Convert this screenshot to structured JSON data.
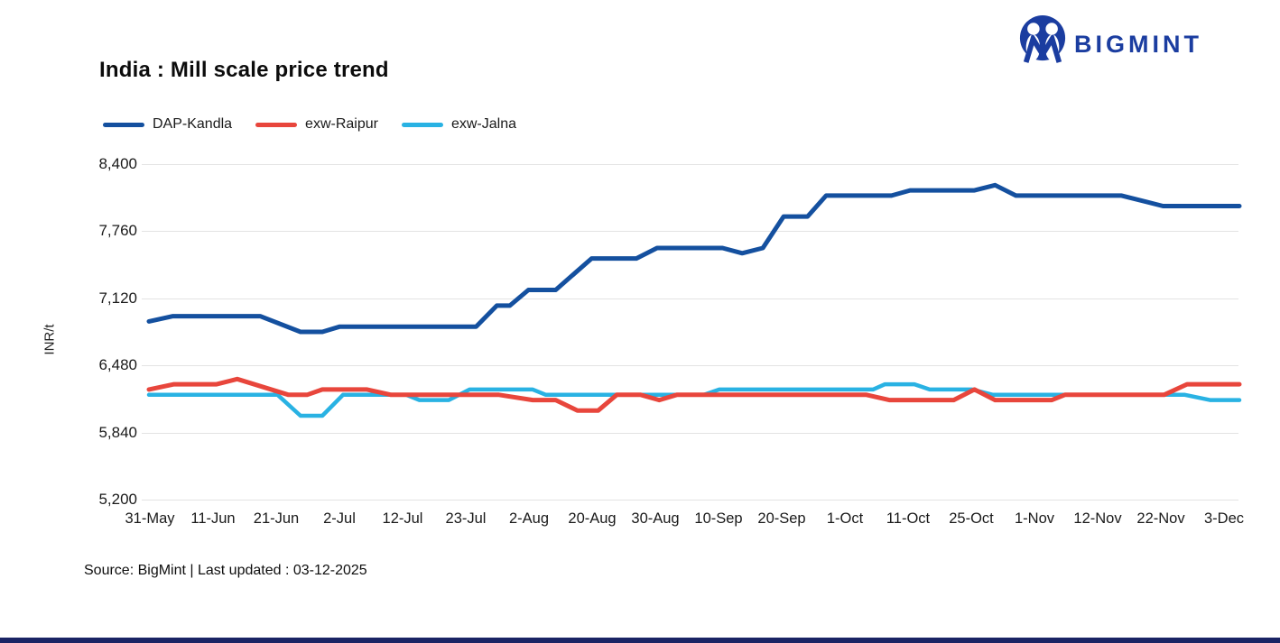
{
  "header": {
    "brand_text": "BIGMINT"
  },
  "title": "India : Mill scale price trend",
  "source_line": "Source: BigMint | Last updated : 03-12-2025",
  "colors": {
    "kandla_blue": "#14509F",
    "raipur_red": "#E8463C",
    "jalna_cyan": "#29B2E3",
    "logo_blue": "#1B3DA0",
    "grid": "#E3E3E3",
    "footer_bar": "#1A2464",
    "text": "#1a1a1a"
  },
  "chart_data": {
    "type": "line",
    "title": "India : Mill scale price trend",
    "xlabel": "",
    "ylabel": "INR/t",
    "ylim": [
      5200,
      8400
    ],
    "grid": "horizontal",
    "legend_position": "top-left",
    "yticks": [
      {
        "value": 8400,
        "label": "8,400"
      },
      {
        "value": 7760,
        "label": "7,760"
      },
      {
        "value": 7120,
        "label": "7,120"
      },
      {
        "value": 6480,
        "label": "6,480"
      },
      {
        "value": 5840,
        "label": "5,840"
      },
      {
        "value": 5200,
        "label": "5,200"
      }
    ],
    "xticks": [
      "31-May",
      "11-Jun",
      "21-Jun",
      "2-Jul",
      "12-Jul",
      "23-Jul",
      "2-Aug",
      "20-Aug",
      "30-Aug",
      "10-Sep",
      "20-Sep",
      "1-Oct",
      "11-Oct",
      "25-Oct",
      "1-Nov",
      "12-Nov",
      "22-Nov",
      "3-Dec"
    ],
    "x_unit": "fraction of timeline, 0 = 31-May, 1 = 3-Dec",
    "series": [
      {
        "name": "DAP-Kandla",
        "color": "#14509F",
        "stroke_width": 5,
        "points": [
          [
            0,
            6900
          ],
          [
            0.022,
            6950
          ],
          [
            0.102,
            6950
          ],
          [
            0.139,
            6800
          ],
          [
            0.159,
            6800
          ],
          [
            0.175,
            6850
          ],
          [
            0.3,
            6850
          ],
          [
            0.319,
            7050
          ],
          [
            0.331,
            7050
          ],
          [
            0.348,
            7200
          ],
          [
            0.373,
            7200
          ],
          [
            0.406,
            7500
          ],
          [
            0.447,
            7500
          ],
          [
            0.466,
            7600
          ],
          [
            0.526,
            7600
          ],
          [
            0.544,
            7550
          ],
          [
            0.563,
            7600
          ],
          [
            0.582,
            7900
          ],
          [
            0.604,
            7900
          ],
          [
            0.621,
            8100
          ],
          [
            0.681,
            8100
          ],
          [
            0.698,
            8150
          ],
          [
            0.757,
            8150
          ],
          [
            0.776,
            8200
          ],
          [
            0.795,
            8100
          ],
          [
            0.892,
            8100
          ],
          [
            0.93,
            8000
          ],
          [
            1,
            8000
          ]
        ]
      },
      {
        "name": "exw-Raipur",
        "color": "#E8463C",
        "stroke_width": 5,
        "points": [
          [
            0,
            6250
          ],
          [
            0.023,
            6300
          ],
          [
            0.062,
            6300
          ],
          [
            0.081,
            6350
          ],
          [
            0.128,
            6200
          ],
          [
            0.145,
            6200
          ],
          [
            0.159,
            6250
          ],
          [
            0.2,
            6250
          ],
          [
            0.222,
            6200
          ],
          [
            0.321,
            6200
          ],
          [
            0.352,
            6150
          ],
          [
            0.373,
            6150
          ],
          [
            0.393,
            6050
          ],
          [
            0.412,
            6050
          ],
          [
            0.429,
            6200
          ],
          [
            0.451,
            6200
          ],
          [
            0.468,
            6150
          ],
          [
            0.484,
            6200
          ],
          [
            0.658,
            6200
          ],
          [
            0.679,
            6150
          ],
          [
            0.738,
            6150
          ],
          [
            0.757,
            6250
          ],
          [
            0.776,
            6150
          ],
          [
            0.828,
            6150
          ],
          [
            0.84,
            6200
          ],
          [
            0.931,
            6200
          ],
          [
            0.952,
            6300
          ],
          [
            1,
            6300
          ]
        ]
      },
      {
        "name": "exw-Jalna",
        "color": "#29B2E3",
        "stroke_width": 4.5,
        "points": [
          [
            0,
            6200
          ],
          [
            0.118,
            6200
          ],
          [
            0.139,
            6000
          ],
          [
            0.159,
            6000
          ],
          [
            0.178,
            6200
          ],
          [
            0.236,
            6200
          ],
          [
            0.248,
            6150
          ],
          [
            0.275,
            6150
          ],
          [
            0.294,
            6250
          ],
          [
            0.352,
            6250
          ],
          [
            0.364,
            6200
          ],
          [
            0.509,
            6200
          ],
          [
            0.523,
            6250
          ],
          [
            0.664,
            6250
          ],
          [
            0.675,
            6300
          ],
          [
            0.702,
            6300
          ],
          [
            0.716,
            6250
          ],
          [
            0.755,
            6250
          ],
          [
            0.774,
            6200
          ],
          [
            0.95,
            6200
          ],
          [
            0.973,
            6150
          ],
          [
            1,
            6150
          ]
        ]
      }
    ]
  }
}
